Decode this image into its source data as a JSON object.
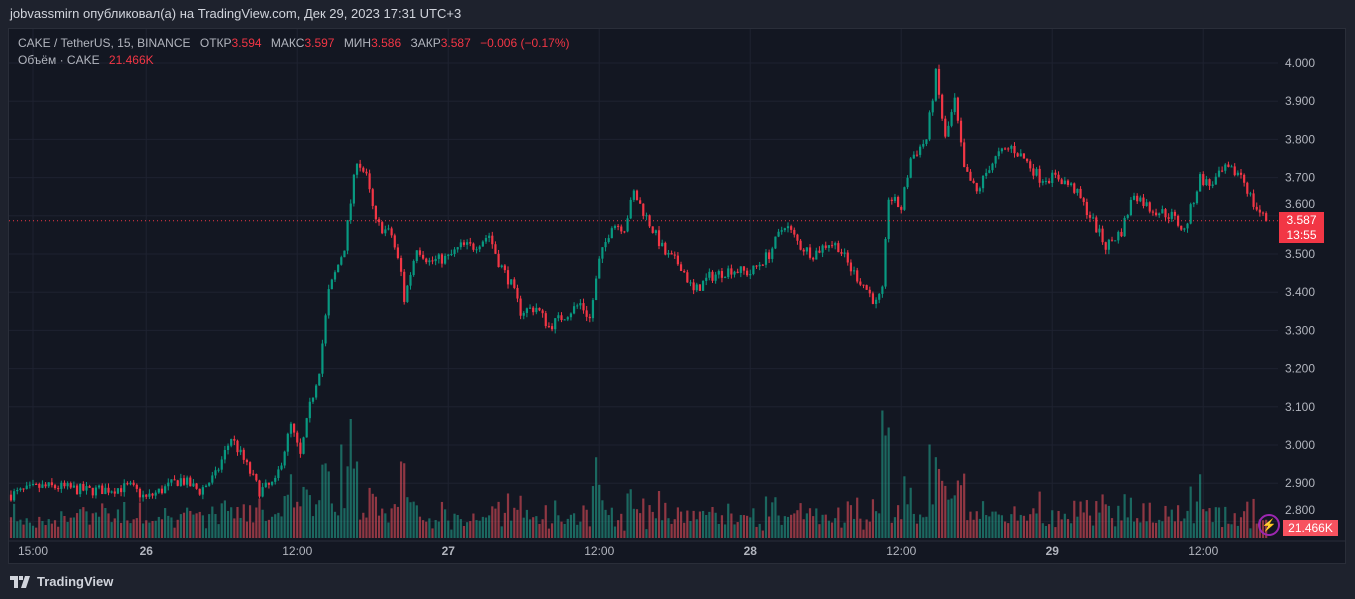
{
  "header": {
    "published": "jobvassmirn опубликовал(а) на TradingView.com, Дек 29, 2023 17:31 UTC+3"
  },
  "legend": {
    "symbol": "CAKE / TetherUS, 15, BINANCE",
    "open_label": "ОТКР",
    "open": "3.594",
    "high_label": "МАКС",
    "high": "3.597",
    "low_label": "МИН",
    "low": "3.586",
    "close_label": "ЗАКР",
    "close": "3.587",
    "change": "−0.006 (−0.17%)",
    "volume_label": "Объём · CAKE",
    "volume": "21.466K"
  },
  "last_price": {
    "price": "3.587",
    "countdown": "13:55"
  },
  "last_volume": "21.466K",
  "footer": {
    "brand": "TradingView"
  },
  "colors": {
    "up": "#089981",
    "down": "#f23645",
    "up_vol": "#22ab94",
    "down_vol": "#f7525f",
    "grid": "#1e2230"
  },
  "chart_data": {
    "type": "candlestick",
    "interval_minutes": 15,
    "title": "CAKE / TetherUS, 15, BINANCE",
    "ylim": [
      2.8,
      4.0
    ],
    "y_ticks": [
      "4.000",
      "3.900",
      "3.800",
      "3.700",
      "3.600",
      "3.500",
      "3.400",
      "3.300",
      "3.200",
      "3.100",
      "3.000",
      "2.900",
      "2.800"
    ],
    "x_ticks": [
      {
        "label": "15:00",
        "hour": 0
      },
      {
        "label": "26",
        "hour": 9
      },
      {
        "label": "12:00",
        "hour": 21
      },
      {
        "label": "27",
        "hour": 33
      },
      {
        "label": "12:00",
        "hour": 45
      },
      {
        "label": "28",
        "hour": 57
      },
      {
        "label": "12:00",
        "hour": 69
      },
      {
        "label": "29",
        "hour": 81
      },
      {
        "label": "12:00",
        "hour": 93
      }
    ],
    "price_path_hours_from_dec25_1500": [
      [
        -1.75,
        2.87
      ],
      [
        0.5,
        2.89
      ],
      [
        2,
        2.89
      ],
      [
        4.5,
        2.88
      ],
      [
        7.75,
        2.89
      ],
      [
        9,
        2.86
      ],
      [
        11.75,
        2.91
      ],
      [
        13.25,
        2.88
      ],
      [
        14.5,
        2.92
      ],
      [
        15.75,
        3.02
      ],
      [
        16.75,
        2.96
      ],
      [
        18,
        2.88
      ],
      [
        19.25,
        2.9
      ],
      [
        20.5,
        3.05
      ],
      [
        21.25,
        2.97
      ],
      [
        22,
        3.1
      ],
      [
        22.75,
        3.2
      ],
      [
        23.5,
        3.4
      ],
      [
        24.75,
        3.52
      ],
      [
        25.75,
        3.75
      ],
      [
        26.5,
        3.7
      ],
      [
        27.25,
        3.58
      ],
      [
        28.5,
        3.55
      ],
      [
        29.25,
        3.45
      ],
      [
        29.5,
        3.38
      ],
      [
        30.5,
        3.52
      ],
      [
        31.5,
        3.48
      ],
      [
        33,
        3.49
      ],
      [
        34,
        3.52
      ],
      [
        35,
        3.52
      ],
      [
        36.25,
        3.55
      ],
      [
        37,
        3.48
      ],
      [
        38,
        3.42
      ],
      [
        38.75,
        3.35
      ],
      [
        40,
        3.36
      ],
      [
        41,
        3.31
      ],
      [
        42.25,
        3.34
      ],
      [
        43.5,
        3.37
      ],
      [
        44.25,
        3.33
      ],
      [
        45,
        3.48
      ],
      [
        46,
        3.58
      ],
      [
        47,
        3.57
      ],
      [
        47.75,
        3.66
      ],
      [
        49,
        3.58
      ],
      [
        50.25,
        3.5
      ],
      [
        51.5,
        3.47
      ],
      [
        52.5,
        3.4
      ],
      [
        53.75,
        3.44
      ],
      [
        55.5,
        3.46
      ],
      [
        57,
        3.45
      ],
      [
        58.5,
        3.5
      ],
      [
        59.75,
        3.58
      ],
      [
        61,
        3.52
      ],
      [
        62,
        3.5
      ],
      [
        63.25,
        3.53
      ],
      [
        64,
        3.52
      ],
      [
        65,
        3.46
      ],
      [
        66,
        3.42
      ],
      [
        67,
        3.37
      ],
      [
        67.5,
        3.4
      ],
      [
        68,
        3.65
      ],
      [
        69,
        3.62
      ],
      [
        69.75,
        3.75
      ],
      [
        71,
        3.8
      ],
      [
        71.75,
        3.97
      ],
      [
        72.5,
        3.8
      ],
      [
        73.25,
        3.9
      ],
      [
        74,
        3.72
      ],
      [
        75,
        3.66
      ],
      [
        76,
        3.73
      ],
      [
        76.75,
        3.76
      ],
      [
        77.75,
        3.78
      ],
      [
        78.75,
        3.75
      ],
      [
        80,
        3.7
      ],
      [
        81.5,
        3.7
      ],
      [
        82.75,
        3.67
      ],
      [
        84,
        3.6
      ],
      [
        85.25,
        3.52
      ],
      [
        86.5,
        3.56
      ],
      [
        87.5,
        3.66
      ],
      [
        88.75,
        3.62
      ],
      [
        90.5,
        3.6
      ],
      [
        91.5,
        3.56
      ],
      [
        92.75,
        3.7
      ],
      [
        93.5,
        3.68
      ],
      [
        94.75,
        3.72
      ],
      [
        96,
        3.71
      ],
      [
        97,
        3.63
      ],
      [
        98,
        3.587
      ]
    ],
    "volume_spikes_k": [
      [
        20.5,
        75
      ],
      [
        24.5,
        110
      ],
      [
        25.25,
        140
      ],
      [
        25.75,
        90
      ],
      [
        29.25,
        90
      ],
      [
        44.75,
        95
      ],
      [
        67.5,
        150
      ],
      [
        68,
        130
      ],
      [
        71.25,
        110
      ],
      [
        92.75,
        75
      ]
    ],
    "last_close": 3.587,
    "last_volume_k": 21.466
  }
}
